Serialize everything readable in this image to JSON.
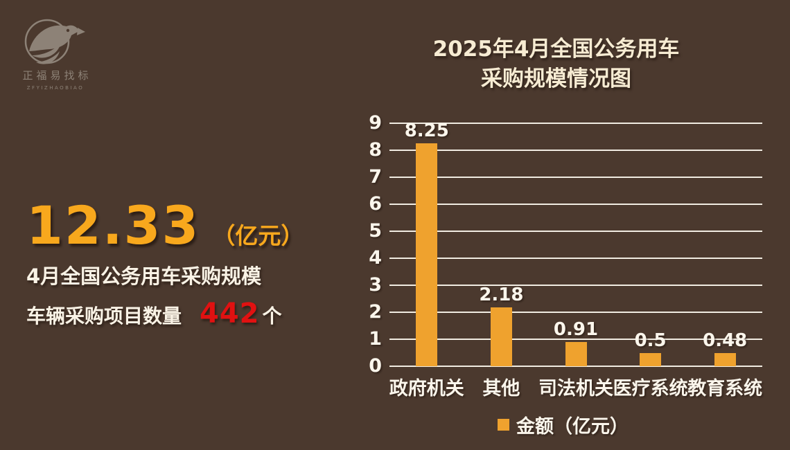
{
  "colors": {
    "background": "#4B392E",
    "bar": "#EFA22E",
    "gold": "#F8A81D",
    "red": "#E11111",
    "cream_title": "#F7ECD3",
    "white_text": "#FBF6EC",
    "gridline": "#F2EDE3",
    "logo_gray": "#8D8277"
  },
  "logo": {
    "name_cn": "正福易找标",
    "name_en": "ZFYIZHAOBIAO"
  },
  "title": {
    "line1": "2025年4月全国公务用车",
    "line2": "采购规模情况图"
  },
  "stats": {
    "big_value": "12.33",
    "big_unit": "（亿元）",
    "subtitle": "4月全国公务用车采购规模",
    "projects_label": "车辆采购项目数量",
    "projects_count": "442",
    "projects_suffix": "个"
  },
  "legend": {
    "label": "金额（亿元）"
  },
  "chart_data": {
    "type": "bar",
    "title": "2025年4月全国公务用车采购规模情况图",
    "categories": [
      "政府机关",
      "其他",
      "司法机关",
      "医疗系统",
      "教育系统"
    ],
    "values": [
      8.25,
      2.18,
      0.91,
      0.5,
      0.48
    ],
    "value_labels": [
      "8.25",
      "2.18",
      "0.91",
      "0.5",
      "0.48"
    ],
    "series_name": "金额（亿元）",
    "xlabel": "",
    "ylabel": "",
    "ylim": [
      0,
      9
    ],
    "ytick_step": 1,
    "ytick_labels": [
      "0",
      "1",
      "2",
      "3",
      "4",
      "5",
      "6",
      "7",
      "8",
      "9"
    ],
    "grid": true,
    "legend_position": "bottom",
    "bar_color": "#EFA22E"
  }
}
